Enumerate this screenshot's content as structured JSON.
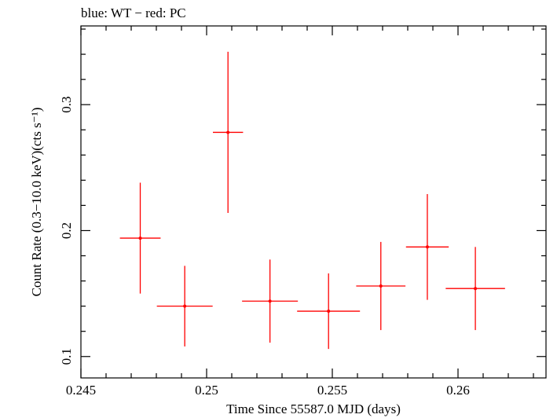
{
  "chart_data": {
    "type": "scatter",
    "title": "blue: WT − red: PC",
    "xlabel": "Time Since 55587.0 MJD (days)",
    "ylabel": "Count Rate (0.3−10.0 keV)(cts s⁻¹)",
    "xlim": [
      0.245,
      0.2635
    ],
    "ylim": [
      0.083,
      0.3625
    ],
    "x_ticks": [
      {
        "value": 0.245,
        "label": "0.245"
      },
      {
        "value": 0.25,
        "label": "0.25"
      },
      {
        "value": 0.255,
        "label": "0.255"
      },
      {
        "value": 0.26,
        "label": "0.26"
      }
    ],
    "y_ticks": [
      {
        "value": 0.1,
        "label": "0.1"
      },
      {
        "value": 0.2,
        "label": "0.2"
      },
      {
        "value": 0.3,
        "label": "0.3"
      }
    ],
    "series": [
      {
        "name": "PC",
        "color": "#ff0000",
        "points": [
          {
            "x": 0.24736,
            "xerr": 0.00081,
            "y": 0.194,
            "yerr_lo": 0.044,
            "yerr_hi": 0.044
          },
          {
            "x": 0.24913,
            "xerr": 0.00111,
            "y": 0.14,
            "yerr_lo": 0.032,
            "yerr_hi": 0.032
          },
          {
            "x": 0.25085,
            "xerr": 0.0006,
            "y": 0.278,
            "yerr_lo": 0.064,
            "yerr_hi": 0.064
          },
          {
            "x": 0.25252,
            "xerr": 0.00111,
            "y": 0.144,
            "yerr_lo": 0.033,
            "yerr_hi": 0.033
          },
          {
            "x": 0.25485,
            "xerr": 0.00125,
            "y": 0.136,
            "yerr_lo": 0.03,
            "yerr_hi": 0.03
          },
          {
            "x": 0.25693,
            "xerr": 0.00098,
            "y": 0.156,
            "yerr_lo": 0.035,
            "yerr_hi": 0.035
          },
          {
            "x": 0.25878,
            "xerr": 0.00085,
            "y": 0.187,
            "yerr_lo": 0.042,
            "yerr_hi": 0.042
          },
          {
            "x": 0.26069,
            "xerr": 0.00118,
            "y": 0.154,
            "yerr_lo": 0.033,
            "yerr_hi": 0.033
          }
        ]
      }
    ]
  }
}
